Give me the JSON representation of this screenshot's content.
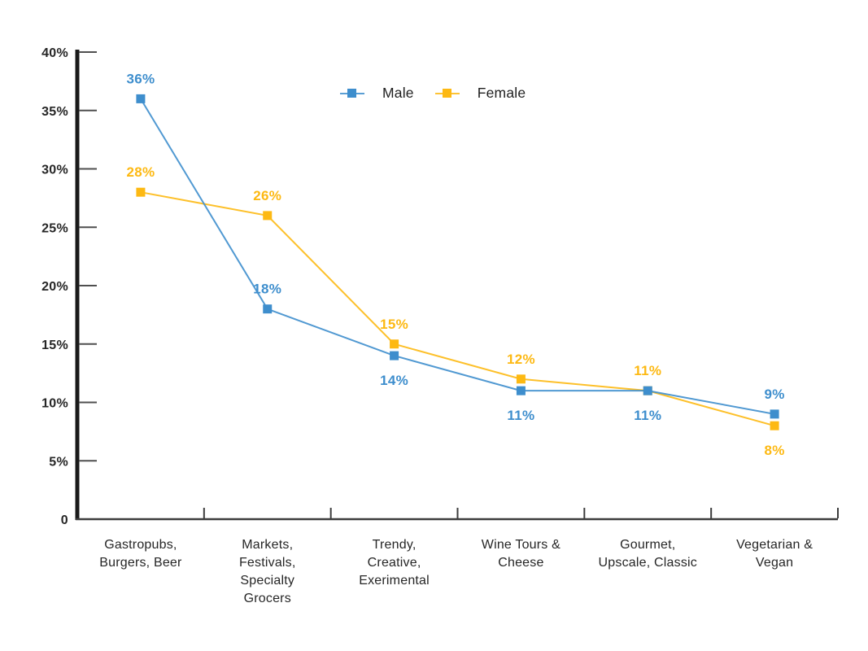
{
  "chart_data": {
    "type": "line",
    "title": "",
    "categories": [
      "Gastropubs, Burgers, Beer",
      "Markets, Festivals, Specialty Grocers",
      "Trendy, Creative, Exerimental",
      "Wine Tours & Cheese",
      "Gourmet, Upscale, Classic",
      "Vegetarian & Vegan"
    ],
    "category_label_lines": [
      [
        "Gastropubs,",
        "Burgers, Beer"
      ],
      [
        "Markets,",
        "Festivals,",
        "Specialty",
        "Grocers"
      ],
      [
        "Trendy,",
        "Creative,",
        "Exerimental"
      ],
      [
        "Wine Tours &",
        "Cheese"
      ],
      [
        "Gourmet,",
        "Upscale, Classic"
      ],
      [
        "Vegetarian &",
        "Vegan"
      ]
    ],
    "series": [
      {
        "name": "Male",
        "color": "#3E8ECD",
        "values": [
          36,
          18,
          14,
          11,
          11,
          9
        ],
        "data_labels": [
          "36%",
          "18%",
          "14%",
          "11%",
          "11%",
          "9%"
        ],
        "data_label_positions": [
          "above",
          "above",
          "below",
          "below",
          "below",
          "above"
        ]
      },
      {
        "name": "Female",
        "color": "#FDB913",
        "values": [
          28,
          26,
          15,
          12,
          11,
          8
        ],
        "data_labels": [
          "28%",
          "26%",
          "15%",
          "12%",
          "11%",
          "8%"
        ],
        "data_label_positions": [
          "above",
          "above",
          "above",
          "above",
          "above",
          "below"
        ]
      }
    ],
    "y_axis": {
      "min": 0,
      "max": 40,
      "step": 5,
      "tick_labels": [
        "0",
        "5%",
        "10%",
        "15%",
        "20%",
        "25%",
        "30%",
        "35%",
        "40%"
      ]
    },
    "x_axis": {
      "tick_marks": "category-boundaries"
    },
    "legend": {
      "position": "top-center"
    },
    "grid": false,
    "marker": "square",
    "value_suffix": "%"
  },
  "colors": {
    "axis": "#1a1a1a",
    "tick": "#4f4f4f",
    "x_axis": "#3c3c3c",
    "text": "#262626",
    "background": "#ffffff"
  }
}
